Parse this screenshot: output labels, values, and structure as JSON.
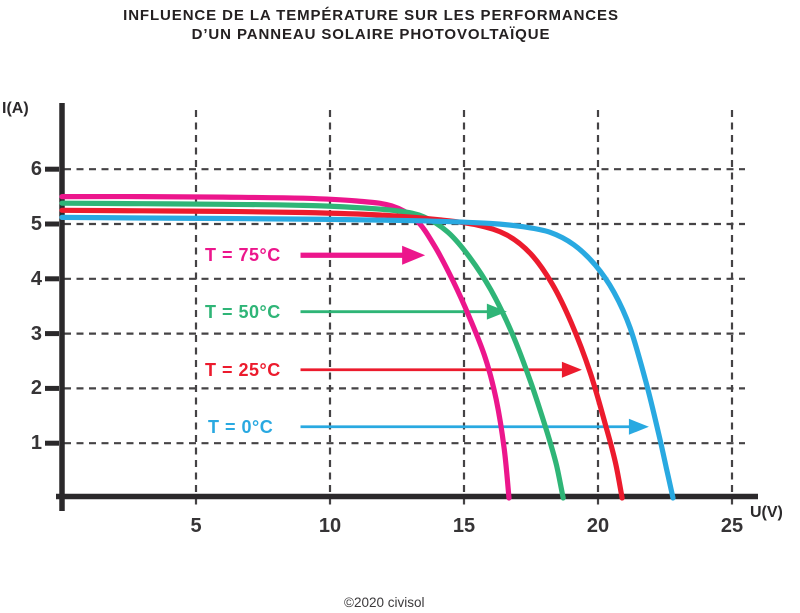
{
  "title": {
    "line1": "INFLUENCE DE LA TEMPÉRATURE SUR LES PERFORMANCES",
    "line2": "D’UN PANNEAU SOLAIRE PHOTOVOLTAÏQUE"
  },
  "watermark": "©2020 civisol",
  "chart_data": {
    "type": "line",
    "title": "INFLUENCE DE LA TEMPÉRATURE SUR LES PERFORMANCES D’UN PANNEAU SOLAIRE PHOTOVOLTAÏQUE",
    "xlabel": "U(V)",
    "ylabel": "I(A)",
    "xlim": [
      0,
      26
    ],
    "ylim": [
      0,
      6.6
    ],
    "xticks": [
      5,
      10,
      15,
      20,
      25
    ],
    "yticks": [
      1,
      2,
      3,
      4,
      5,
      6
    ],
    "grid": "dashed",
    "axis_color": "#2B292B",
    "grid_color": "#454345",
    "legend_position": "inline-arrow-annotations",
    "series": [
      {
        "name": "T = 75°C",
        "temperature_c": 75,
        "color": "#EC168C",
        "isc_a": 5.5,
        "voc_v": 16.7,
        "points": [
          [
            0,
            5.5
          ],
          [
            3,
            5.5
          ],
          [
            6,
            5.49
          ],
          [
            9,
            5.47
          ],
          [
            11,
            5.42
          ],
          [
            12.3,
            5.33
          ],
          [
            13.2,
            5.08
          ],
          [
            13.9,
            4.6
          ],
          [
            14.6,
            3.95
          ],
          [
            15.2,
            3.3
          ],
          [
            15.8,
            2.55
          ],
          [
            16.2,
            1.8
          ],
          [
            16.5,
            0.9
          ],
          [
            16.68,
            0
          ]
        ]
      },
      {
        "name": "T = 50°C",
        "temperature_c": 50,
        "color": "#2FB577",
        "isc_a": 5.38,
        "voc_v": 18.7,
        "points": [
          [
            0,
            5.38
          ],
          [
            3,
            5.37
          ],
          [
            6,
            5.36
          ],
          [
            9,
            5.34
          ],
          [
            11,
            5.3
          ],
          [
            12.5,
            5.24
          ],
          [
            13.5,
            5.13
          ],
          [
            14.4,
            4.85
          ],
          [
            15.2,
            4.4
          ],
          [
            16.0,
            3.8
          ],
          [
            16.8,
            3.0
          ],
          [
            17.5,
            2.1
          ],
          [
            18.1,
            1.2
          ],
          [
            18.45,
            0.6
          ],
          [
            18.7,
            0
          ]
        ]
      },
      {
        "name": "T = 25°C",
        "temperature_c": 25,
        "color": "#EC1B2D",
        "isc_a": 5.25,
        "voc_v": 20.9,
        "points": [
          [
            0,
            5.25
          ],
          [
            3,
            5.24
          ],
          [
            6,
            5.23
          ],
          [
            9,
            5.21
          ],
          [
            12,
            5.16
          ],
          [
            14,
            5.08
          ],
          [
            15.5,
            4.98
          ],
          [
            16.6,
            4.8
          ],
          [
            17.5,
            4.45
          ],
          [
            18.3,
            3.9
          ],
          [
            19.0,
            3.2
          ],
          [
            19.7,
            2.3
          ],
          [
            20.3,
            1.3
          ],
          [
            20.65,
            0.65
          ],
          [
            20.9,
            0
          ]
        ]
      },
      {
        "name": "T = 0°C",
        "temperature_c": 0,
        "color": "#29A9E1",
        "isc_a": 5.12,
        "voc_v": 22.8,
        "points": [
          [
            0,
            5.12
          ],
          [
            3,
            5.11
          ],
          [
            6,
            5.1
          ],
          [
            9,
            5.09
          ],
          [
            12,
            5.07
          ],
          [
            14,
            5.05
          ],
          [
            16,
            5.01
          ],
          [
            17.2,
            4.95
          ],
          [
            18.2,
            4.85
          ],
          [
            19.1,
            4.62
          ],
          [
            19.9,
            4.25
          ],
          [
            20.6,
            3.75
          ],
          [
            21.2,
            3.1
          ],
          [
            21.8,
            2.1
          ],
          [
            22.25,
            1.2
          ],
          [
            22.55,
            0.55
          ],
          [
            22.8,
            0
          ]
        ]
      }
    ],
    "annotations": [
      {
        "label": "T = 75°C",
        "series": 0,
        "arrow_i_a": 4.43,
        "arrow_u_from": 8.9,
        "arrow_u_to": 13.55
      },
      {
        "label": "T = 50°C",
        "series": 1,
        "arrow_i_a": 3.4,
        "arrow_u_from": 8.9,
        "arrow_u_to": 16.6
      },
      {
        "label": "T = 25°C",
        "series": 2,
        "arrow_i_a": 2.34,
        "arrow_u_from": 8.9,
        "arrow_u_to": 19.4
      },
      {
        "label": "T = 0°C",
        "series": 3,
        "arrow_i_a": 1.3,
        "arrow_u_from": 8.9,
        "arrow_u_to": 21.9
      }
    ]
  }
}
